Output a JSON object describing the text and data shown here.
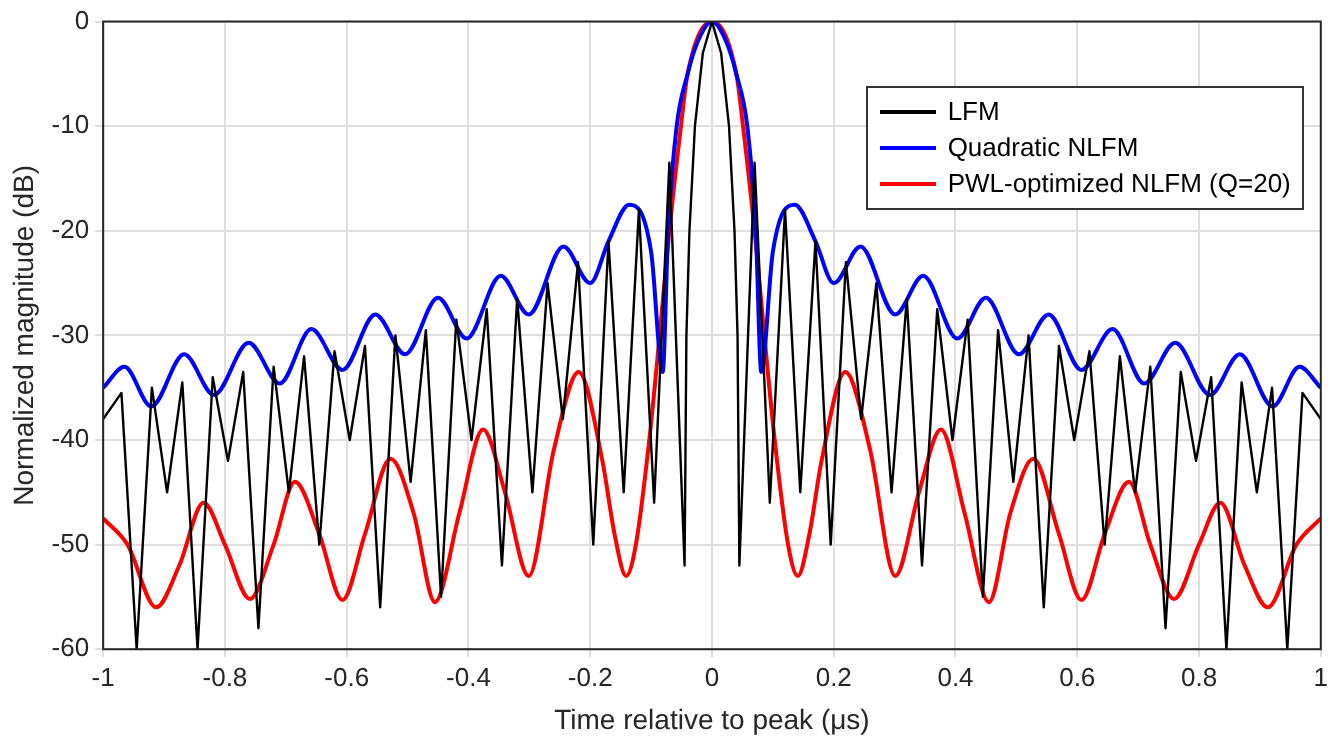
{
  "chart_data": {
    "type": "line",
    "xlabel": "Time relative to peak (μs)",
    "ylabel": "Normalized magnitude (dB)",
    "xlim": [
      -1,
      1
    ],
    "xticks": [
      -1,
      -0.8,
      -0.6,
      -0.4,
      -0.2,
      0,
      0.2,
      0.4,
      0.6,
      0.8,
      1
    ],
    "ylim": [
      -60,
      0
    ],
    "yticks": [
      -60,
      -50,
      -40,
      -30,
      -20,
      -10,
      0
    ],
    "grid": true,
    "legend": "top right",
    "marker": "none",
    "line_style": "solid",
    "series": [
      {
        "name": "LFM",
        "color": "#000000",
        "x": [
          -1,
          -0.97,
          -0.945,
          -0.92,
          -0.895,
          -0.87,
          -0.845,
          -0.82,
          -0.795,
          -0.77,
          -0.745,
          -0.72,
          -0.695,
          -0.67,
          -0.645,
          -0.62,
          -0.595,
          -0.57,
          -0.545,
          -0.52,
          -0.495,
          -0.47,
          -0.445,
          -0.42,
          -0.395,
          -0.37,
          -0.345,
          -0.32,
          -0.295,
          -0.27,
          -0.245,
          -0.22,
          -0.195,
          -0.17,
          -0.145,
          -0.12,
          -0.095,
          -0.07,
          -0.045,
          -0.042,
          -0.037,
          -0.028,
          -0.015,
          0,
          0.015,
          0.028,
          0.037,
          0.042,
          0.045,
          0.07,
          0.095,
          0.12,
          0.145,
          0.17,
          0.195,
          0.22,
          0.245,
          0.27,
          0.295,
          0.32,
          0.345,
          0.37,
          0.395,
          0.42,
          0.445,
          0.47,
          0.495,
          0.52,
          0.545,
          0.57,
          0.595,
          0.62,
          0.645,
          0.67,
          0.695,
          0.72,
          0.745,
          0.77,
          0.795,
          0.82,
          0.845,
          0.87,
          0.895,
          0.92,
          0.945,
          0.97,
          1
        ],
        "values": [
          -38,
          -35.5,
          -60,
          -35,
          -45,
          -34.5,
          -60,
          -34,
          -42,
          -33.5,
          -58,
          -33,
          -45,
          -32,
          -50,
          -31.5,
          -40,
          -31,
          -56,
          -30,
          -44,
          -29.5,
          -55,
          -28.5,
          -40,
          -27.5,
          -52,
          -26.5,
          -45,
          -25,
          -38,
          -23,
          -50,
          -21,
          -45,
          -18,
          -46,
          -13.5,
          -52,
          -30,
          -20,
          -10,
          -3,
          0,
          -3,
          -10,
          -20,
          -30,
          -52,
          -13.5,
          -46,
          -18,
          -45,
          -21,
          -50,
          -23,
          -38,
          -25,
          -45,
          -26.5,
          -52,
          -27.5,
          -40,
          -28.5,
          -55,
          -29.5,
          -44,
          -30,
          -56,
          -31,
          -40,
          -31.5,
          -50,
          -32,
          -45,
          -33,
          -58,
          -33.5,
          -42,
          -34,
          -60,
          -34.5,
          -45,
          -35,
          -60,
          -35.5,
          -38
        ]
      },
      {
        "name": "Quadratic NLFM",
        "color": "#0000ff",
        "x": [
          -1,
          -0.965,
          -0.921,
          -0.867,
          -0.818,
          -0.761,
          -0.71,
          -0.658,
          -0.607,
          -0.553,
          -0.504,
          -0.45,
          -0.403,
          -0.347,
          -0.301,
          -0.244,
          -0.2,
          -0.17,
          -0.136,
          -0.1,
          -0.081,
          -0.072,
          -0.058,
          -0.04,
          -0.024,
          0,
          0.024,
          0.04,
          0.058,
          0.072,
          0.081,
          0.1,
          0.136,
          0.17,
          0.2,
          0.244,
          0.301,
          0.347,
          0.403,
          0.45,
          0.504,
          0.553,
          0.607,
          0.658,
          0.71,
          0.761,
          0.818,
          0.867,
          0.921,
          0.965,
          1
        ],
        "values": [
          -35,
          -33,
          -36.8,
          -31.8,
          -35.7,
          -30.7,
          -34.6,
          -29.4,
          -33.3,
          -28,
          -31.8,
          -26.4,
          -30.3,
          -24.3,
          -28,
          -21.5,
          -25,
          -21,
          -17.5,
          -22,
          -33.5,
          -20,
          -10,
          -5,
          -2,
          0,
          -2,
          -5,
          -10,
          -20,
          -33.5,
          -22,
          -17.5,
          -21,
          -25,
          -21.5,
          -28,
          -24.3,
          -30.3,
          -26.4,
          -31.8,
          -28,
          -33.3,
          -29.4,
          -34.6,
          -30.7,
          -35.7,
          -31.8,
          -36.8,
          -33,
          -35
        ]
      },
      {
        "name": "PWL-optimized NLFM (Q=20)",
        "color": "#ff0000",
        "x": [
          -1,
          -0.96,
          -0.913,
          -0.875,
          -0.835,
          -0.8,
          -0.759,
          -0.72,
          -0.685,
          -0.645,
          -0.607,
          -0.57,
          -0.528,
          -0.49,
          -0.455,
          -0.415,
          -0.376,
          -0.34,
          -0.301,
          -0.26,
          -0.219,
          -0.18,
          -0.16,
          -0.141,
          -0.125,
          -0.103,
          -0.086,
          -0.07,
          -0.051,
          -0.04,
          0,
          0.04,
          0.051,
          0.07,
          0.086,
          0.103,
          0.125,
          0.141,
          0.16,
          0.18,
          0.219,
          0.26,
          0.301,
          0.34,
          0.376,
          0.415,
          0.455,
          0.49,
          0.528,
          0.57,
          0.607,
          0.645,
          0.685,
          0.72,
          0.759,
          0.8,
          0.835,
          0.875,
          0.913,
          0.96,
          1
        ],
        "values": [
          -47.5,
          -50,
          -56,
          -52,
          -46,
          -50,
          -55.2,
          -50,
          -44,
          -49,
          -55.3,
          -49,
          -41.8,
          -47,
          -55.5,
          -47,
          -39,
          -45,
          -53,
          -41,
          -33.5,
          -42,
          -49,
          -53,
          -50,
          -40,
          -30,
          -20,
          -10,
          -5,
          0,
          -5,
          -10,
          -20,
          -30,
          -40,
          -50,
          -53,
          -49,
          -42,
          -33.5,
          -41,
          -53,
          -45,
          -39,
          -47,
          -55.5,
          -47,
          -41.8,
          -49,
          -55.3,
          -49,
          -44,
          -50,
          -55.2,
          -50,
          -46,
          -52,
          -56,
          -50,
          -47.5
        ]
      }
    ]
  }
}
